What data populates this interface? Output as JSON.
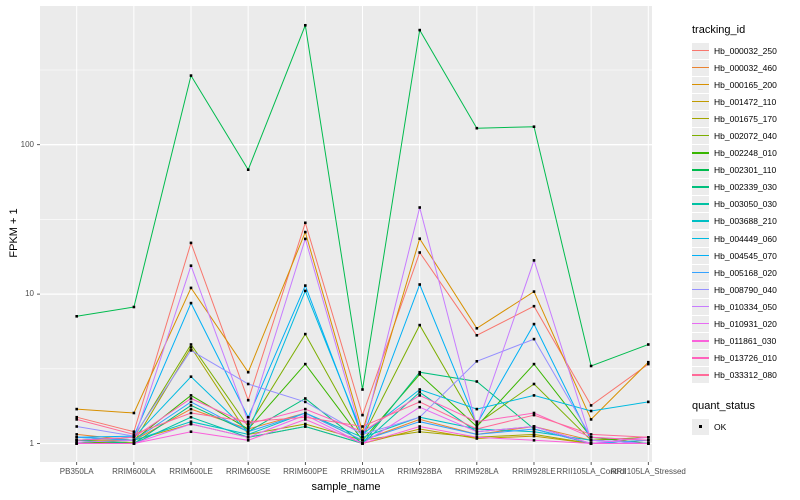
{
  "figure": {
    "x_axis_title": "sample_name",
    "y_axis_title": "FPKM + 1",
    "y_tick_labels": [
      "1",
      "10",
      "100"
    ],
    "legend_tracking": {
      "title": "tracking_id"
    },
    "legend_quant": {
      "title": "quant_status",
      "items": [
        {
          "label": "OK"
        }
      ]
    }
  },
  "chart_data": {
    "type": "line",
    "title": "",
    "xlabel": "sample_name",
    "ylabel": "FPKM + 1",
    "y_scale": "log10",
    "ylim": [
      0.75,
      850
    ],
    "y_major_ticks": [
      1,
      10,
      100
    ],
    "y_minor_gridlines": [
      3.162,
      31.62,
      316.2
    ],
    "grid": true,
    "legend_position": "right",
    "point_marker": {
      "shape": "square",
      "color": "#000000",
      "meaning": "quant_status OK"
    },
    "colors": {
      "panel_bg": "#EBEBEB",
      "gridline": "#FFFFFF",
      "tick_text": "#4D4D4D",
      "tick_mark": "#333333"
    },
    "categories": [
      "PB350LA",
      "RRIM600LA",
      "RRIM600LE",
      "RRIM600SE",
      "RRIM600PE",
      "RRIM901LA",
      "RRIM928BA",
      "RRIM928LA",
      "RRIM928LE",
      "RRII105LA_Control",
      "RRII105LA_Stressed"
    ],
    "series": [
      {
        "name": "Hb_000032_250",
        "color": "#F8766D",
        "values": [
          1.5,
          1.2,
          22,
          1.95,
          30,
          1.55,
          19,
          5.3,
          8.3,
          1.8,
          3.4
        ]
      },
      {
        "name": "Hb_000032_460",
        "color": "#EA8331",
        "values": [
          1.15,
          1.05,
          1.7,
          1.25,
          1.6,
          1.05,
          1.45,
          1.15,
          1.3,
          1.05,
          1.1
        ]
      },
      {
        "name": "Hb_000165_200",
        "color": "#D89000",
        "values": [
          1.7,
          1.6,
          11,
          3.0,
          26,
          1.2,
          23.5,
          5.9,
          10.4,
          1.45,
          3.5
        ]
      },
      {
        "name": "Hb_001472_110",
        "color": "#C09B00",
        "values": [
          1.05,
          1.05,
          1.35,
          1.1,
          1.3,
          1.0,
          1.25,
          1.08,
          1.12,
          1.0,
          1.05
        ]
      },
      {
        "name": "Hb_001675_170",
        "color": "#A3A500",
        "values": [
          1.0,
          1.02,
          4.4,
          1.15,
          1.35,
          1.05,
          1.2,
          1.1,
          1.15,
          1.0,
          1.0
        ]
      },
      {
        "name": "Hb_002072_040",
        "color": "#7CAE00",
        "values": [
          1.05,
          1.1,
          4.6,
          1.3,
          5.4,
          1.1,
          6.2,
          1.35,
          2.5,
          1.05,
          1.1
        ]
      },
      {
        "name": "Hb_002248_010",
        "color": "#39B600",
        "values": [
          1.0,
          1.05,
          2.1,
          1.25,
          3.4,
          1.05,
          2.9,
          1.3,
          3.4,
          1.1,
          1.0
        ]
      },
      {
        "name": "Hb_002301_110",
        "color": "#00BB4E",
        "values": [
          7.1,
          8.2,
          290,
          68,
          630,
          2.3,
          585,
          129,
          132,
          3.3,
          4.6
        ]
      },
      {
        "name": "Hb_002339_030",
        "color": "#00BF7D",
        "values": [
          1.05,
          1.0,
          1.8,
          1.2,
          2.0,
          1.0,
          3.0,
          2.6,
          1.25,
          1.0,
          1.05
        ]
      },
      {
        "name": "Hb_003050_030",
        "color": "#00C1A3",
        "values": [
          1.0,
          1.0,
          1.5,
          1.1,
          1.3,
          1.0,
          2.2,
          1.2,
          1.3,
          1.0,
          1.0
        ]
      },
      {
        "name": "Hb_003688_210",
        "color": "#00BFC4",
        "values": [
          1.1,
          1.05,
          1.4,
          1.15,
          1.6,
          1.1,
          1.5,
          1.25,
          1.2,
          1.05,
          1.0
        ]
      },
      {
        "name": "Hb_004449_060",
        "color": "#00BAE0",
        "values": [
          1.05,
          1.1,
          2.8,
          1.2,
          10.5,
          1.15,
          2.3,
          1.7,
          2.1,
          1.65,
          1.9
        ]
      },
      {
        "name": "Hb_004545_070",
        "color": "#00B0F6",
        "values": [
          1.1,
          1.12,
          8.7,
          1.5,
          11.4,
          1.1,
          11.6,
          1.35,
          6.3,
          1.05,
          1.0
        ]
      },
      {
        "name": "Hb_005168_020",
        "color": "#35A2FF",
        "values": [
          1.1,
          1.05,
          1.9,
          1.2,
          1.6,
          1.05,
          1.4,
          1.15,
          1.25,
          1.0,
          1.05
        ]
      },
      {
        "name": "Hb_008790_040",
        "color": "#9590FF",
        "values": [
          1.3,
          1.12,
          4.2,
          2.5,
          1.9,
          1.15,
          1.5,
          3.55,
          5.0,
          1.1,
          1.05
        ]
      },
      {
        "name": "Hb_010334_050",
        "color": "#C77CFF",
        "values": [
          1.02,
          1.05,
          15.5,
          1.4,
          23.4,
          1.1,
          38,
          1.3,
          16.8,
          1.05,
          1.0
        ]
      },
      {
        "name": "Hb_010931_020",
        "color": "#E76BF3",
        "values": [
          1.0,
          1.0,
          1.35,
          1.1,
          1.55,
          1.0,
          1.75,
          1.2,
          1.3,
          1.0,
          1.1
        ]
      },
      {
        "name": "Hb_011861_030",
        "color": "#FA62DB",
        "values": [
          1.0,
          1.0,
          1.2,
          1.05,
          1.45,
          1.0,
          1.3,
          1.1,
          1.05,
          1.0,
          1.0
        ]
      },
      {
        "name": "Hb_013726_010",
        "color": "#FF62BC",
        "values": [
          1.05,
          1.1,
          2.0,
          1.35,
          1.7,
          1.2,
          2.1,
          1.4,
          1.6,
          1.1,
          1.05
        ]
      },
      {
        "name": "Hb_033312_080",
        "color": "#FF6A98",
        "values": [
          1.45,
          1.15,
          1.6,
          1.4,
          1.5,
          1.3,
          1.9,
          1.25,
          1.55,
          1.15,
          1.1
        ]
      }
    ]
  }
}
